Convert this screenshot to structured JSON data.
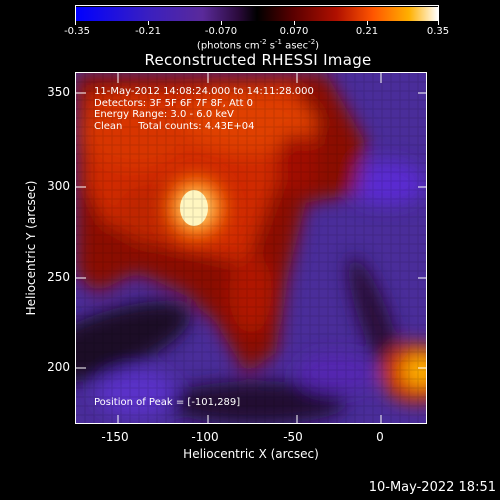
{
  "colorbar": {
    "tick_labels": [
      "-0.35",
      "-0.21",
      "-0.070",
      "0.070",
      "0.21",
      "0.35"
    ],
    "unit_prefix": "(photons cm",
    "unit_exp1": "-2",
    "unit_mid1": " s",
    "unit_exp2": "-1",
    "unit_mid2": " asec",
    "unit_exp3": "-2",
    "unit_suffix": ")",
    "colors": [
      "#0000ff",
      "#3a1fc0",
      "#5a2a9a",
      "#2a0a3a",
      "#000000",
      "#5a0000",
      "#b01000",
      "#ff5500",
      "#ffb000",
      "#ffffff"
    ]
  },
  "title": "Reconstructed RHESSI Image",
  "info": {
    "line1": "11-May-2012 14:08:24.000 to 14:11:28.000",
    "line2": "Detectors: 3F 5F 6F 7F 8F, Att 0",
    "line3": "Energy Range: 3.0 - 6.0 keV",
    "line4": "Clean     Total counts: 4.43E+04"
  },
  "peak_text": "Position of Peak = [-101,289]",
  "axes": {
    "x_title": "Heliocentric X (arcsec)",
    "y_title": "Heliocentric Y (arcsec)",
    "x_ticks": [
      "-150",
      "-100",
      "-50",
      "0"
    ],
    "y_ticks": [
      "350",
      "300",
      "250",
      "200"
    ]
  },
  "footer": "10-May-2022 18:51"
}
